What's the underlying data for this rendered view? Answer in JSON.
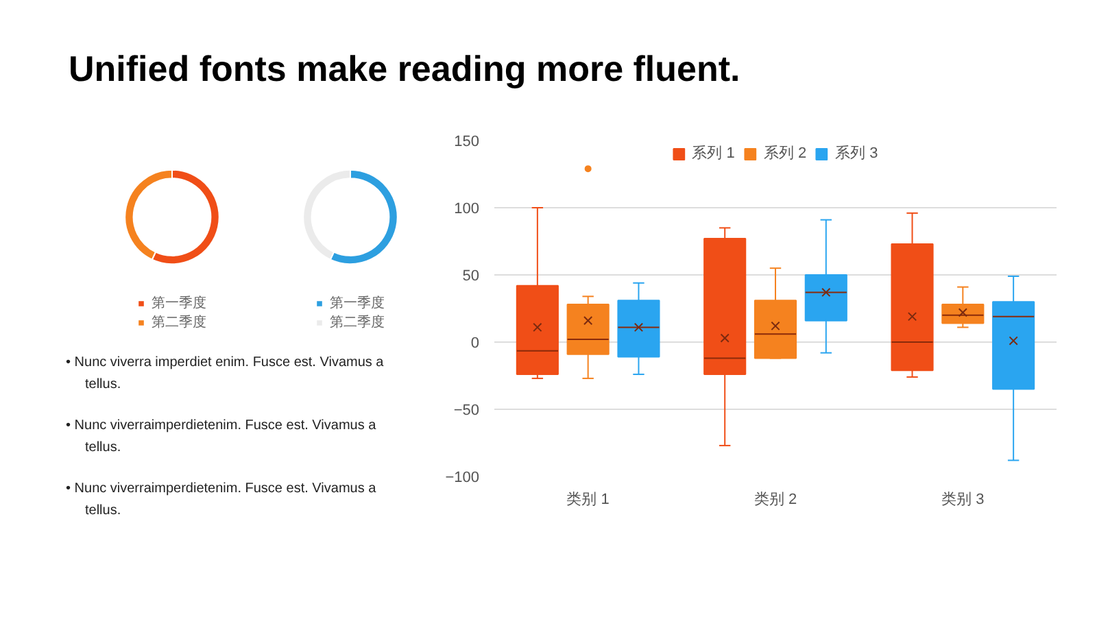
{
  "chart_data": [
    {
      "type": "other",
      "title": "Unified fonts make reading more fluent."
    },
    {
      "type": "donut",
      "categories": [
        "第一季度",
        "第二季度"
      ],
      "values": [
        57,
        43
      ],
      "colors": [
        "#f04e17",
        "#f5821f"
      ],
      "legend": "bottom"
    },
    {
      "type": "donut",
      "categories": [
        "第一季度",
        "第二季度"
      ],
      "values": [
        57,
        43
      ],
      "colors": [
        "#2d9fe0",
        "#ebebeb"
      ],
      "legend": "bottom"
    },
    {
      "type": "other",
      "annotations": [
        "• Nunc viverra imperdiet enim. Fusce est. Vivamus a tellus.",
        "• Nunc viverraimperdietenim. Fusce est. Vivamus a tellus.",
        "• Nunc viverraimperdietenim. Fusce est. Vivamus a tellus."
      ]
    },
    {
      "type": "box",
      "categories": [
        "类别 1",
        "类别 2",
        "类别 3"
      ],
      "ylim": [
        -100,
        150
      ],
      "yticks": [
        -100,
        -50,
        0,
        50,
        100,
        150
      ],
      "grid": "y",
      "legend": "top",
      "series": [
        {
          "name": "系列 1",
          "color": "#f04e17",
          "boxes": [
            {
              "low": -27,
              "q1": -24,
              "median": -6.5,
              "q3": 42,
              "high": 100,
              "mean": 11
            },
            {
              "low": -77,
              "q1": -24,
              "median": -12,
              "q3": 77,
              "high": 85,
              "mean": 3
            },
            {
              "low": -26,
              "q1": -21,
              "median": 0,
              "q3": 73,
              "high": 96,
              "mean": 19
            }
          ]
        },
        {
          "name": "系列 2",
          "color": "#f5821f",
          "boxes": [
            {
              "low": -27,
              "q1": -9,
              "median": 2,
              "q3": 28,
              "high": 34,
              "mean": 16,
              "outliers": [
                129
              ]
            },
            {
              "low": -12,
              "q1": -12,
              "median": 6,
              "q3": 31,
              "high": 55,
              "mean": 12
            },
            {
              "low": 11,
              "q1": 14,
              "median": 20,
              "q3": 28,
              "high": 41,
              "mean": 22
            }
          ]
        },
        {
          "name": "系列 3",
          "color": "#2aa5f0",
          "boxes": [
            {
              "low": -24,
              "q1": -11,
              "median": 11,
              "q3": 31,
              "high": 44,
              "mean": 11
            },
            {
              "low": -8,
              "q1": 16,
              "median": 37,
              "q3": 50,
              "high": 91,
              "mean": 37
            },
            {
              "low": -88,
              "q1": -35,
              "median": 19,
              "q3": 30,
              "high": 49,
              "mean": 1
            }
          ]
        }
      ]
    }
  ]
}
